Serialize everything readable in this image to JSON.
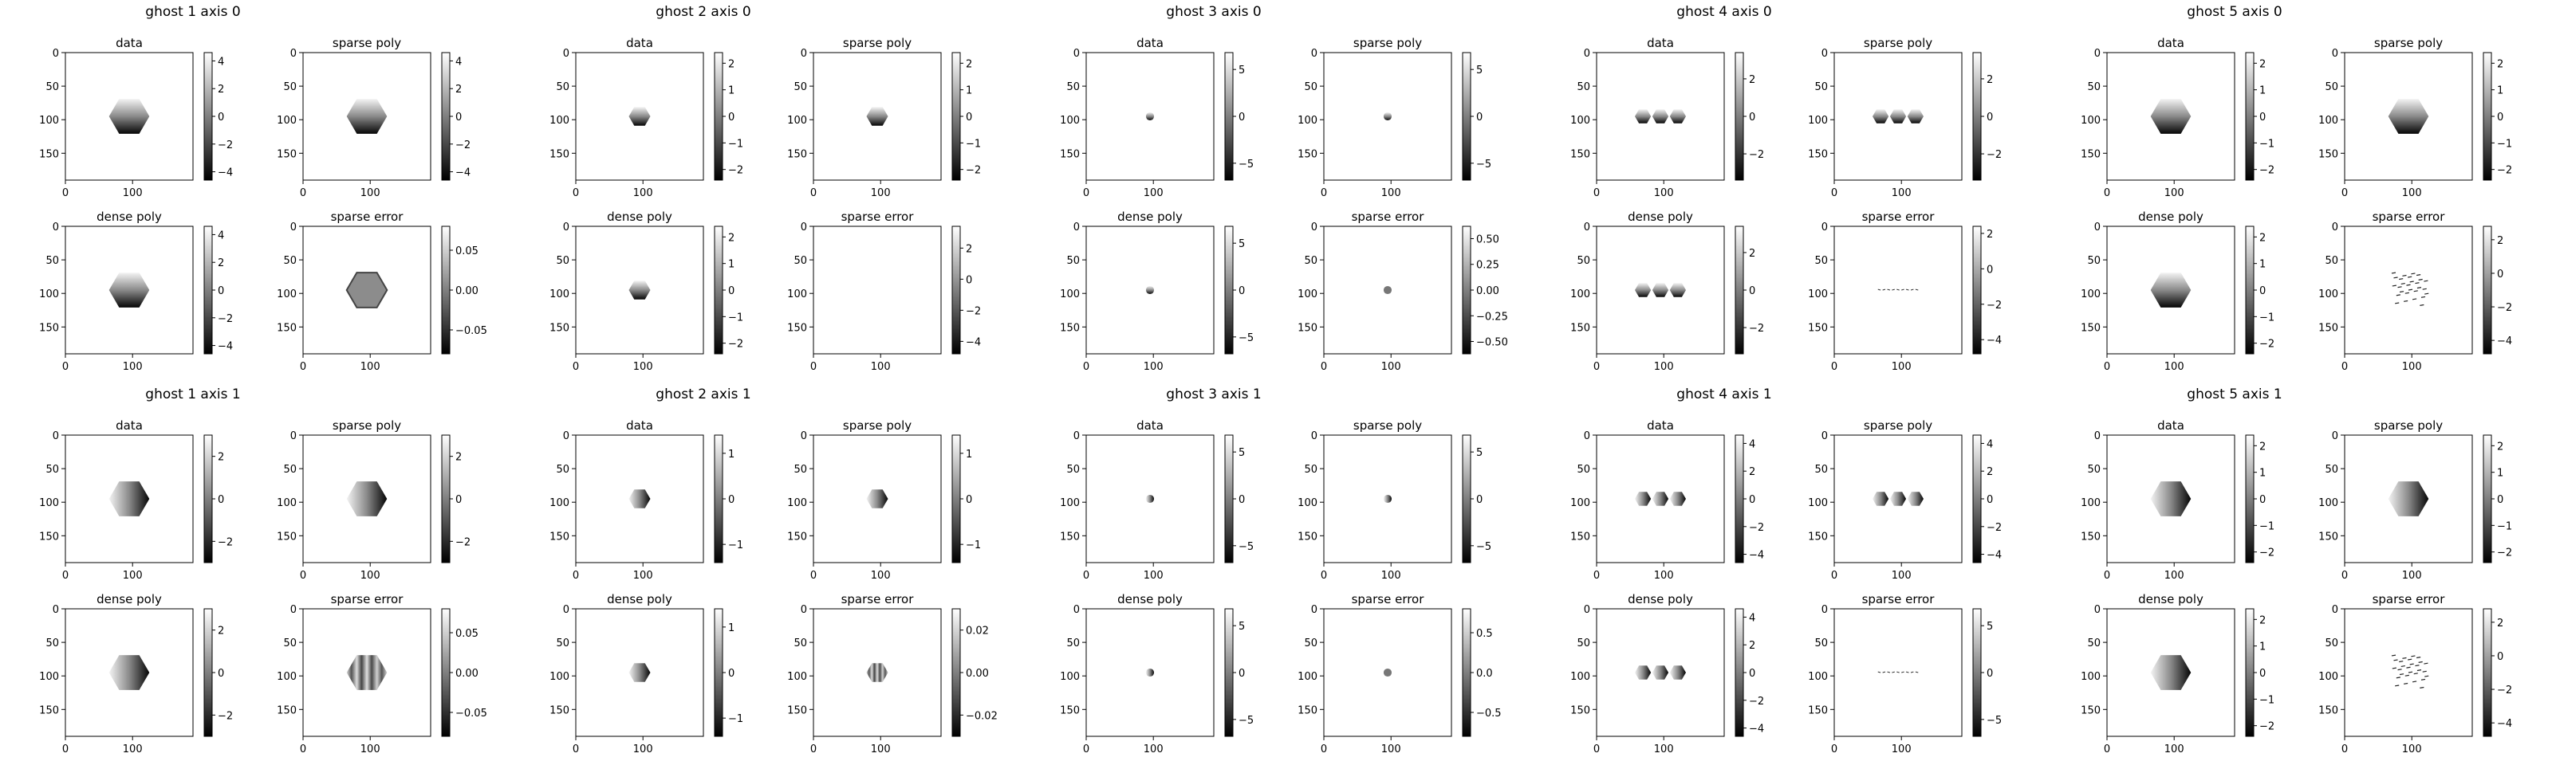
{
  "chart_data": {
    "type": "heatmap",
    "description_colormap": "gray",
    "x_ticks": [
      0,
      100
    ],
    "y_ticks": [
      0,
      50,
      100,
      150
    ],
    "colors": {
      "ink": "#000000",
      "background": "#ffffff"
    },
    "groups": [
      {
        "title": "ghost 1 axis 0",
        "panels": [
          {
            "label": "data",
            "cbar_ticks": [
              4,
              2,
              0,
              -2,
              -4
            ],
            "vmin": -4.6,
            "vmax": 4.6,
            "shape": "hexagon",
            "radius": 30,
            "gradient": "vertical"
          },
          {
            "label": "sparse poly",
            "cbar_ticks": [
              4,
              2,
              0,
              -2,
              -4
            ],
            "vmin": -4.6,
            "vmax": 4.6,
            "shape": "hexagon",
            "radius": 30,
            "gradient": "vertical"
          },
          {
            "label": "dense poly",
            "cbar_ticks": [
              4,
              2,
              0,
              -2,
              -4
            ],
            "vmin": -4.6,
            "vmax": 4.6,
            "shape": "hexagon",
            "radius": 30,
            "gradient": "vertical"
          },
          {
            "label": "sparse error",
            "cbar_ticks": [
              0.05,
              0.0,
              -0.05
            ],
            "cbar_tick_labels": [
              "0.05",
              "0.00",
              "−0.05"
            ],
            "vmin": -0.08,
            "vmax": 0.08,
            "shape": "hexagon",
            "radius": 30,
            "gradient": "flat"
          }
        ]
      },
      {
        "title": "ghost 2 axis 0",
        "panels": [
          {
            "label": "data",
            "cbar_ticks": [
              2,
              1,
              0,
              -1,
              -2
            ],
            "vmin": -2.4,
            "vmax": 2.4,
            "shape": "hexagon",
            "radius": 16,
            "gradient": "vertical"
          },
          {
            "label": "sparse poly",
            "cbar_ticks": [
              2,
              1,
              0,
              -1,
              -2
            ],
            "vmin": -2.4,
            "vmax": 2.4,
            "shape": "hexagon",
            "radius": 16,
            "gradient": "vertical"
          },
          {
            "label": "dense poly",
            "cbar_ticks": [
              2,
              1,
              0,
              -1,
              -2
            ],
            "vmin": -2.4,
            "vmax": 2.4,
            "shape": "hexagon",
            "radius": 16,
            "gradient": "vertical"
          },
          {
            "label": "sparse error",
            "cbar_ticks": [
              2,
              0,
              -2,
              -4
            ],
            "vmin": -4.8,
            "vmax": 3.4,
            "shape": "none",
            "radius": 0,
            "gradient": "flat"
          }
        ]
      },
      {
        "title": "ghost 3 axis 0",
        "panels": [
          {
            "label": "data",
            "cbar_ticks": [
              5,
              0,
              -5
            ],
            "vmin": -6.8,
            "vmax": 6.8,
            "shape": "circle",
            "radius": 6,
            "gradient": "vertical"
          },
          {
            "label": "sparse poly",
            "cbar_ticks": [
              5,
              0,
              -5
            ],
            "vmin": -6.8,
            "vmax": 6.8,
            "shape": "circle",
            "radius": 6,
            "gradient": "vertical"
          },
          {
            "label": "dense poly",
            "cbar_ticks": [
              5,
              0,
              -5
            ],
            "vmin": -6.8,
            "vmax": 6.8,
            "shape": "circle",
            "radius": 6,
            "gradient": "vertical"
          },
          {
            "label": "sparse error",
            "cbar_ticks": [
              0.5,
              0.25,
              0.0,
              -0.25,
              -0.5
            ],
            "cbar_tick_labels": [
              "0.50",
              "0.25",
              "0.00",
              "−0.25",
              "−0.50"
            ],
            "vmin": -0.62,
            "vmax": 0.62,
            "shape": "circle",
            "radius": 6,
            "gradient": "flat"
          }
        ]
      },
      {
        "title": "ghost 4 axis 0",
        "panels": [
          {
            "label": "data",
            "cbar_ticks": [
              2,
              0,
              -2
            ],
            "vmin": -3.4,
            "vmax": 3.4,
            "shape": "triple",
            "radius": 12,
            "gradient": "vertical"
          },
          {
            "label": "sparse poly",
            "cbar_ticks": [
              2,
              0,
              -2
            ],
            "vmin": -3.4,
            "vmax": 3.4,
            "shape": "triple",
            "radius": 12,
            "gradient": "vertical"
          },
          {
            "label": "dense poly",
            "cbar_ticks": [
              2,
              0,
              -2
            ],
            "vmin": -3.4,
            "vmax": 3.4,
            "shape": "triple",
            "radius": 12,
            "gradient": "vertical"
          },
          {
            "label": "sparse error",
            "cbar_ticks": [
              2,
              0,
              -2,
              -4
            ],
            "vmin": -4.8,
            "vmax": 2.4,
            "shape": "streaks",
            "radius": 0,
            "gradient": "flat"
          }
        ]
      },
      {
        "title": "ghost 5 axis 0",
        "panels": [
          {
            "label": "data",
            "cbar_ticks": [
              2,
              1,
              0,
              -1,
              -2
            ],
            "vmin": -2.4,
            "vmax": 2.4,
            "shape": "hexagon",
            "radius": 30,
            "gradient": "vertical"
          },
          {
            "label": "sparse poly",
            "cbar_ticks": [
              2,
              1,
              0,
              -1,
              -2
            ],
            "vmin": -2.4,
            "vmax": 2.4,
            "shape": "hexagon",
            "radius": 30,
            "gradient": "vertical"
          },
          {
            "label": "dense poly",
            "cbar_ticks": [
              2,
              1,
              0,
              -1,
              -2
            ],
            "vmin": -2.4,
            "vmax": 2.4,
            "shape": "hexagon",
            "radius": 30,
            "gradient": "vertical"
          },
          {
            "label": "sparse error",
            "cbar_ticks": [
              2,
              0,
              -2,
              -4
            ],
            "vmin": -4.8,
            "vmax": 2.8,
            "shape": "noise",
            "radius": 30,
            "gradient": "flat"
          }
        ]
      },
      {
        "title": "ghost 1 axis 1",
        "panels": [
          {
            "label": "data",
            "cbar_ticks": [
              2,
              0,
              -2
            ],
            "vmin": -3.0,
            "vmax": 3.0,
            "shape": "hexagon",
            "radius": 30,
            "gradient": "horizontal"
          },
          {
            "label": "sparse poly",
            "cbar_ticks": [
              2,
              0,
              -2
            ],
            "vmin": -3.0,
            "vmax": 3.0,
            "shape": "hexagon",
            "radius": 30,
            "gradient": "horizontal"
          },
          {
            "label": "dense poly",
            "cbar_ticks": [
              2,
              0,
              -2
            ],
            "vmin": -3.0,
            "vmax": 3.0,
            "shape": "hexagon",
            "radius": 30,
            "gradient": "horizontal"
          },
          {
            "label": "sparse error",
            "cbar_ticks": [
              0.05,
              0.0,
              -0.05
            ],
            "cbar_tick_labels": [
              "0.05",
              "0.00",
              "−0.05"
            ],
            "vmin": -0.08,
            "vmax": 0.08,
            "shape": "hexagon",
            "radius": 30,
            "gradient": "stripes"
          }
        ]
      },
      {
        "title": "ghost 2 axis 1",
        "panels": [
          {
            "label": "data",
            "cbar_ticks": [
              1,
              0,
              -1
            ],
            "vmin": -1.4,
            "vmax": 1.4,
            "shape": "hexagon",
            "radius": 16,
            "gradient": "horizontal"
          },
          {
            "label": "sparse poly",
            "cbar_ticks": [
              1,
              0,
              -1
            ],
            "vmin": -1.4,
            "vmax": 1.4,
            "shape": "hexagon",
            "radius": 16,
            "gradient": "horizontal"
          },
          {
            "label": "dense poly",
            "cbar_ticks": [
              1,
              0,
              -1
            ],
            "vmin": -1.4,
            "vmax": 1.4,
            "shape": "hexagon",
            "radius": 16,
            "gradient": "horizontal"
          },
          {
            "label": "sparse error",
            "cbar_ticks": [
              0.02,
              0.0,
              -0.02
            ],
            "cbar_tick_labels": [
              "0.02",
              "0.00",
              "−0.02"
            ],
            "vmin": -0.03,
            "vmax": 0.03,
            "shape": "hexagon",
            "radius": 16,
            "gradient": "stripes"
          }
        ]
      },
      {
        "title": "ghost 3 axis 1",
        "panels": [
          {
            "label": "data",
            "cbar_ticks": [
              5,
              0,
              -5
            ],
            "vmin": -6.8,
            "vmax": 6.8,
            "shape": "circle",
            "radius": 6,
            "gradient": "horizontal"
          },
          {
            "label": "sparse poly",
            "cbar_ticks": [
              5,
              0,
              -5
            ],
            "vmin": -6.8,
            "vmax": 6.8,
            "shape": "circle",
            "radius": 6,
            "gradient": "horizontal"
          },
          {
            "label": "dense poly",
            "cbar_ticks": [
              5,
              0,
              -5
            ],
            "vmin": -6.8,
            "vmax": 6.8,
            "shape": "circle",
            "radius": 6,
            "gradient": "horizontal"
          },
          {
            "label": "sparse error",
            "cbar_ticks": [
              0.5,
              0.0,
              -0.5
            ],
            "cbar_tick_labels": [
              "0.5",
              "0.0",
              "−0.5"
            ],
            "vmin": -0.8,
            "vmax": 0.8,
            "shape": "circle",
            "radius": 6,
            "gradient": "flat"
          }
        ]
      },
      {
        "title": "ghost 4 axis 1",
        "panels": [
          {
            "label": "data",
            "cbar_ticks": [
              4,
              2,
              0,
              -2,
              -4
            ],
            "vmin": -4.6,
            "vmax": 4.6,
            "shape": "triple",
            "radius": 12,
            "gradient": "horizontal"
          },
          {
            "label": "sparse poly",
            "cbar_ticks": [
              4,
              2,
              0,
              -2,
              -4
            ],
            "vmin": -4.6,
            "vmax": 4.6,
            "shape": "triple",
            "radius": 12,
            "gradient": "horizontal"
          },
          {
            "label": "dense poly",
            "cbar_ticks": [
              4,
              2,
              0,
              -2,
              -4
            ],
            "vmin": -4.6,
            "vmax": 4.6,
            "shape": "triple",
            "radius": 12,
            "gradient": "horizontal"
          },
          {
            "label": "sparse error",
            "cbar_ticks": [
              5,
              0,
              -5
            ],
            "vmin": -6.8,
            "vmax": 6.8,
            "shape": "streaks",
            "radius": 0,
            "gradient": "flat"
          }
        ]
      },
      {
        "title": "ghost 5 axis 1",
        "panels": [
          {
            "label": "data",
            "cbar_ticks": [
              2,
              1,
              0,
              -1,
              -2
            ],
            "vmin": -2.4,
            "vmax": 2.4,
            "shape": "hexagon",
            "radius": 30,
            "gradient": "horizontal"
          },
          {
            "label": "sparse poly",
            "cbar_ticks": [
              2,
              1,
              0,
              -1,
              -2
            ],
            "vmin": -2.4,
            "vmax": 2.4,
            "shape": "hexagon",
            "radius": 30,
            "gradient": "horizontal"
          },
          {
            "label": "dense poly",
            "cbar_ticks": [
              2,
              1,
              0,
              -1,
              -2
            ],
            "vmin": -2.4,
            "vmax": 2.4,
            "shape": "hexagon",
            "radius": 30,
            "gradient": "horizontal"
          },
          {
            "label": "sparse error",
            "cbar_ticks": [
              2,
              0,
              -2,
              -4
            ],
            "vmin": -4.8,
            "vmax": 2.8,
            "shape": "noise",
            "radius": 30,
            "gradient": "flat"
          }
        ]
      }
    ]
  }
}
